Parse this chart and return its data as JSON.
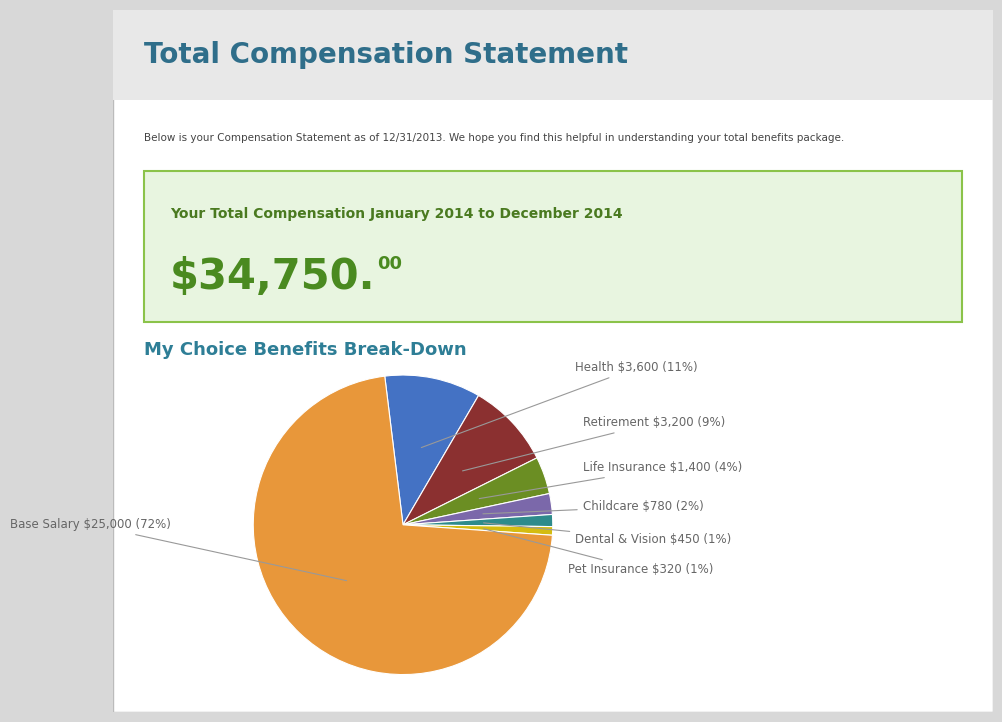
{
  "main_title": "Total Compensation Statement",
  "subtitle": "Below is your Compensation Statement as of 12/31/2013. We hope you find this helpful in understanding your total benefits package.",
  "green_box_title": "Your Total Compensation January 2014 to December 2014",
  "total_amount_main": "$34,750.",
  "total_amount_sup": "00",
  "section_title": "My Choice Benefits Break-Down",
  "pie_labels": [
    "Health $3,600 (11%)",
    "Retirement $3,200 (9%)",
    "Life Insurance $1,400 (4%)",
    "Childcare $780 (2%)",
    "Dental & Vision $450 (1%)",
    "Pet Insurance $320 (1%)",
    "Base Salary $25,000 (72%)"
  ],
  "pie_values": [
    3600,
    3200,
    1400,
    780,
    450,
    320,
    25000
  ],
  "pie_colors": [
    "#4472C4",
    "#8B3030",
    "#6B8E23",
    "#7B68AA",
    "#2E8B8B",
    "#D4BC10",
    "#E8973A"
  ],
  "bg_color": "#ffffff",
  "outer_bg": "#d8d8d8",
  "header_bg": "#e8e8e8",
  "green_box_bg": "#e8f5e0",
  "green_box_border": "#8BC34A",
  "main_title_color": "#2F6E8A",
  "green_title_color": "#4A7A20",
  "total_amount_color": "#4A8A20",
  "section_title_color": "#2E7E96",
  "subtitle_color": "#444444",
  "label_color": "#666666"
}
